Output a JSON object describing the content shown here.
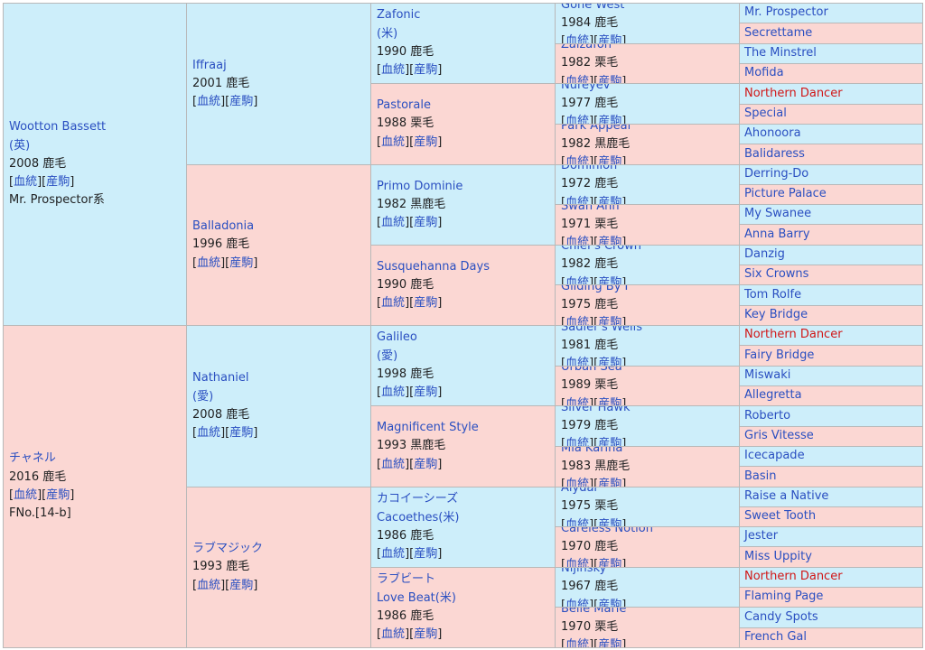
{
  "common": {
    "lineage": "血統",
    "progeny": "産駒",
    "lb": "[",
    "mid": "][",
    "rb": "]"
  },
  "gen1": [
    {
      "name": "Wootton Bassett",
      "origin": "(英)",
      "info": "2008 鹿毛",
      "note": "Mr. Prospector系"
    },
    {
      "name": "チャネル",
      "info": "2016 鹿毛",
      "note": "FNo.[14-b]"
    }
  ],
  "gen2": [
    {
      "name": "Iffraaj",
      "info": "2001 鹿毛"
    },
    {
      "name": "Balladonia",
      "info": "1996 鹿毛"
    },
    {
      "name": "Nathaniel",
      "origin": "(愛)",
      "info": "2008 鹿毛"
    },
    {
      "name": "ラブマジック",
      "info": "1993 鹿毛"
    }
  ],
  "gen3": [
    {
      "name": "Zafonic",
      "origin": "(米)",
      "info": "1990 鹿毛"
    },
    {
      "name": "Pastorale",
      "info": "1988 栗毛"
    },
    {
      "name": "Primo Dominie",
      "info": "1982 黒鹿毛"
    },
    {
      "name": "Susquehanna Days",
      "info": "1990 鹿毛"
    },
    {
      "name": "Galileo",
      "origin": "(愛)",
      "info": "1998 鹿毛"
    },
    {
      "name": "Magnificent Style",
      "info": "1993 黒鹿毛"
    },
    {
      "name": "カコイーシーズ",
      "name2": "Cacoethes(米)",
      "info": "1986 鹿毛"
    },
    {
      "name": "ラブビート",
      "name2": "Love Beat(米)",
      "info": "1986 鹿毛"
    }
  ],
  "gen4": [
    {
      "name": "Gone West",
      "info": "1984 鹿毛"
    },
    {
      "name": "Zaizafon",
      "info": "1982 栗毛"
    },
    {
      "name": "Nureyev",
      "info": "1977 鹿毛"
    },
    {
      "name": "Park Appeal",
      "info": "1982 黒鹿毛"
    },
    {
      "name": "Dominion",
      "info": "1972 鹿毛"
    },
    {
      "name": "Swan Ann",
      "info": "1971 栗毛"
    },
    {
      "name": "Chief's Crown",
      "info": "1982 鹿毛"
    },
    {
      "name": "Gliding By I",
      "info": "1975 鹿毛"
    },
    {
      "name": "Sadler's Wells",
      "info": "1981 鹿毛"
    },
    {
      "name": "Urban Sea",
      "info": "1989 栗毛"
    },
    {
      "name": "Silver Hawk",
      "info": "1979 鹿毛"
    },
    {
      "name": "Mia Karina",
      "info": "1983 黒鹿毛"
    },
    {
      "name": "Alydar",
      "info": "1975 栗毛"
    },
    {
      "name": "Careless Notion",
      "info": "1970 鹿毛"
    },
    {
      "name": "Nijinsky",
      "info": "1967 鹿毛"
    },
    {
      "name": "Belle Marie",
      "info": "1970 栗毛"
    }
  ],
  "gen5": [
    {
      "name": "Mr. Prospector"
    },
    {
      "name": "Secrettame"
    },
    {
      "name": "The Minstrel"
    },
    {
      "name": "Mofida"
    },
    {
      "name": "Northern Dancer",
      "inbred": true
    },
    {
      "name": "Special"
    },
    {
      "name": "Ahonoora"
    },
    {
      "name": "Balidaress"
    },
    {
      "name": "Derring-Do"
    },
    {
      "name": "Picture Palace"
    },
    {
      "name": "My Swanee"
    },
    {
      "name": "Anna Barry"
    },
    {
      "name": "Danzig"
    },
    {
      "name": "Six Crowns"
    },
    {
      "name": "Tom Rolfe"
    },
    {
      "name": "Key Bridge"
    },
    {
      "name": "Northern Dancer",
      "inbred": true
    },
    {
      "name": "Fairy Bridge"
    },
    {
      "name": "Miswaki"
    },
    {
      "name": "Allegretta"
    },
    {
      "name": "Roberto"
    },
    {
      "name": "Gris Vitesse"
    },
    {
      "name": "Icecapade"
    },
    {
      "name": "Basin"
    },
    {
      "name": "Raise a Native"
    },
    {
      "name": "Sweet Tooth"
    },
    {
      "name": "Jester"
    },
    {
      "name": "Miss Uppity"
    },
    {
      "name": "Northern Dancer",
      "inbred": true
    },
    {
      "name": "Flaming Page"
    },
    {
      "name": "Candy Spots"
    },
    {
      "name": "French Gal"
    }
  ],
  "colors": {
    "sire_bg": "#cdeefa",
    "dam_bg": "#fbd7d3",
    "link": "#2a4fc1",
    "inbreeding": "#d11717",
    "border": "#b8b8b8"
  }
}
